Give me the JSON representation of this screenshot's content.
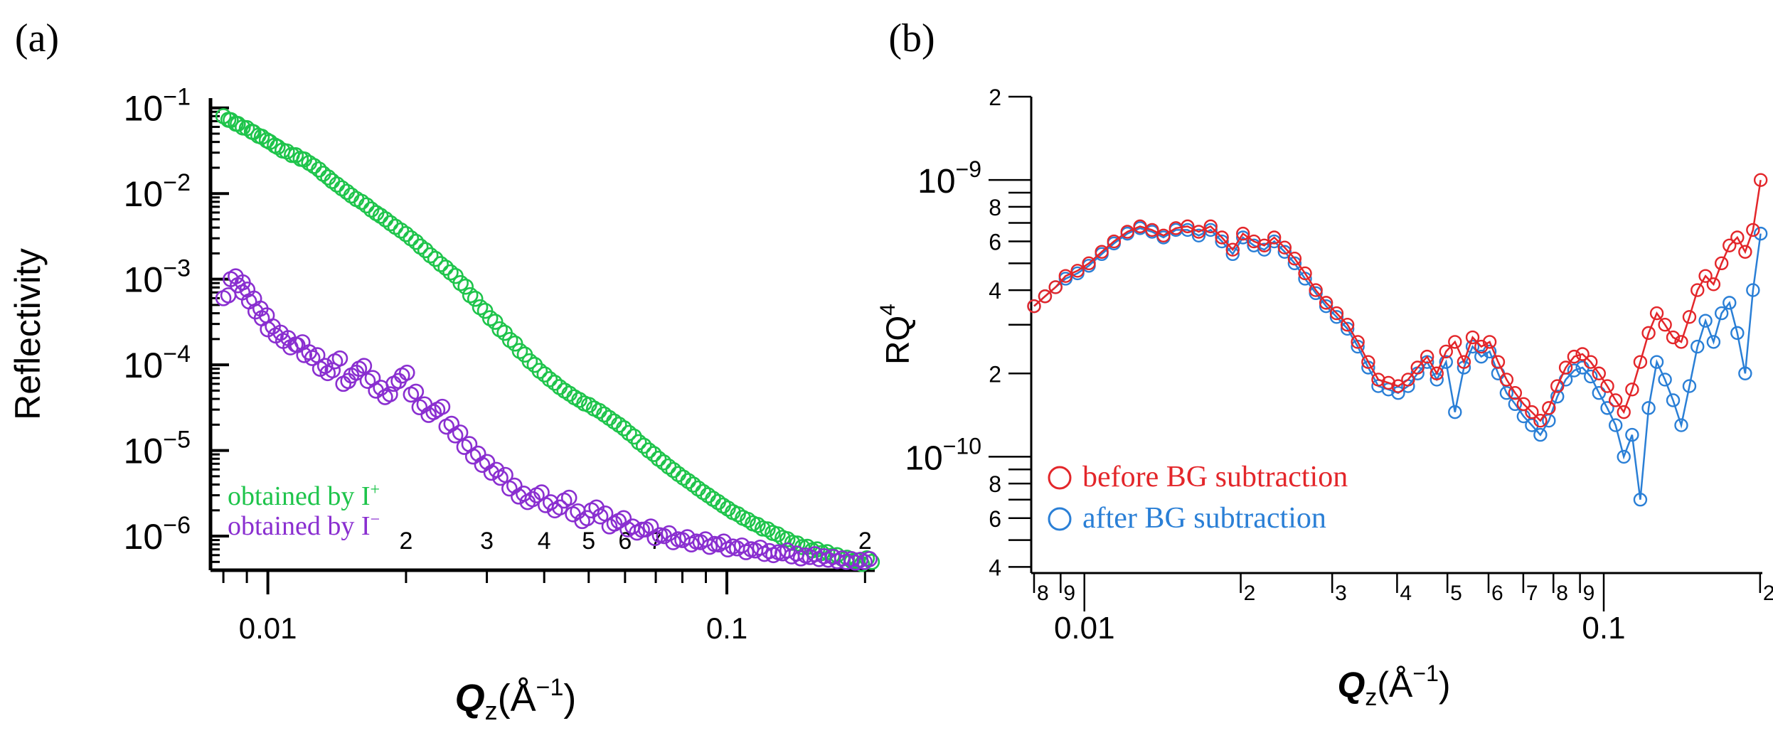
{
  "colors": {
    "axis": "#000000",
    "green": "#1ec44b",
    "purple": "#8a2fd0",
    "red": "#e3262a",
    "blue": "#2a7fd6"
  },
  "chart_data": [
    {
      "type": "scatter",
      "panel_label": "(a)",
      "xscale": "log",
      "yscale": "log",
      "xlim": [
        0.0075,
        0.21
      ],
      "ylim": [
        4e-07,
        0.13
      ],
      "xlabel_main": "Q",
      "xlabel_sub": "z",
      "xlabel_unit": "(Å",
      "xlabel_exp": "−1",
      "xlabel_close": ")",
      "ylabel": "Reflectivity",
      "x_major_ticks": [
        {
          "value": 0.01,
          "label": "0.01"
        },
        {
          "value": 0.1,
          "label": "0.1"
        }
      ],
      "x_minor_ticks": [
        {
          "value": 0.02,
          "label": "2"
        },
        {
          "value": 0.03,
          "label": "3"
        },
        {
          "value": 0.04,
          "label": "4"
        },
        {
          "value": 0.05,
          "label": "5"
        },
        {
          "value": 0.06,
          "label": "6"
        },
        {
          "value": 0.07,
          "label": "7"
        },
        {
          "value": 0.2,
          "label": "2"
        }
      ],
      "x_minor_unlabeled": [
        0.008,
        0.009,
        0.08,
        0.09
      ],
      "y_ticks": [
        {
          "value": 0.1,
          "base": "10",
          "exp": "−1"
        },
        {
          "value": 0.01,
          "base": "10",
          "exp": "−2"
        },
        {
          "value": 0.001,
          "base": "10",
          "exp": "−3"
        },
        {
          "value": 0.0001,
          "base": "10",
          "exp": "−4"
        },
        {
          "value": 1e-05,
          "base": "10",
          "exp": "−5"
        },
        {
          "value": 1e-06,
          "base": "10",
          "exp": "−6"
        }
      ],
      "legend": [
        {
          "text": "obtained by I",
          "sup": "+",
          "color": "green"
        },
        {
          "text": "obtained by I",
          "sup": "−",
          "color": "purple"
        }
      ],
      "series": [
        {
          "name": "obtained by I+",
          "color": "green",
          "x": [
            0.008,
            0.0083,
            0.0086,
            0.009,
            0.0093,
            0.0097,
            0.0101,
            0.0105,
            0.011,
            0.0115,
            0.012,
            0.0126,
            0.0132,
            0.0138,
            0.0145,
            0.0152,
            0.016,
            0.0168,
            0.0176,
            0.0185,
            0.0195,
            0.0205,
            0.0215,
            0.0226,
            0.0238,
            0.025,
            0.0263,
            0.0276,
            0.029,
            0.0305,
            0.032,
            0.0337,
            0.0354,
            0.0372,
            0.0391,
            0.0411,
            0.0432,
            0.0454,
            0.0477,
            0.0501,
            0.0527,
            0.0554,
            0.0582,
            0.0612,
            0.0643,
            0.0676,
            0.071,
            0.0746,
            0.0784,
            0.0824,
            0.0866,
            0.091,
            0.0957,
            0.1005,
            0.1057,
            0.1111,
            0.1167,
            0.1227,
            0.129,
            0.1355,
            0.1424,
            0.1497,
            0.1573,
            0.1654,
            0.1738,
            0.1827,
            0.192,
            0.2018
          ],
          "y": [
            0.08,
            0.072,
            0.065,
            0.058,
            0.052,
            0.046,
            0.04,
            0.035,
            0.031,
            0.028,
            0.025,
            0.021,
            0.017,
            0.014,
            0.0115,
            0.0095,
            0.008,
            0.0065,
            0.0055,
            0.0045,
            0.0037,
            0.003,
            0.0024,
            0.0019,
            0.0015,
            0.0012,
            0.0009,
            0.00065,
            0.00047,
            0.00035,
            0.00026,
            0.000195,
            0.000145,
            0.00011,
            8.5e-05,
            6.8e-05,
            5.5e-05,
            4.6e-05,
            3.9e-05,
            3.4e-05,
            2.9e-05,
            2.4e-05,
            2e-05,
            1.6e-05,
            1.25e-05,
            1e-05,
            8e-06,
            6.5e-06,
            5.3e-06,
            4.4e-06,
            3.6e-06,
            3e-06,
            2.5e-06,
            2.1e-06,
            1.8e-06,
            1.55e-06,
            1.35e-06,
            1.2e-06,
            1.05e-06,
            9.2e-07,
            8.2e-07,
            7.5e-07,
            7e-07,
            6.5e-07,
            6e-07,
            5.6e-07,
            5.2e-07,
            5.5e-07
          ]
        },
        {
          "name": "obtained by I−",
          "color": "purple",
          "x": [
            0.008,
            0.0083,
            0.0086,
            0.0088,
            0.0091,
            0.0094,
            0.0097,
            0.01,
            0.0104,
            0.0108,
            0.0112,
            0.0116,
            0.012,
            0.0125,
            0.013,
            0.0135,
            0.014,
            0.0146,
            0.0152,
            0.0158,
            0.0165,
            0.0172,
            0.018,
            0.0188,
            0.0196,
            0.0205,
            0.0214,
            0.0224,
            0.0234,
            0.0245,
            0.0256,
            0.0268,
            0.028,
            0.0293,
            0.0307,
            0.0321,
            0.0336,
            0.0352,
            0.0368,
            0.0385,
            0.0403,
            0.0422,
            0.0442,
            0.0462,
            0.0484,
            0.0507,
            0.053,
            0.0555,
            0.0581,
            0.0608,
            0.0637,
            0.0666,
            0.0697,
            0.073,
            0.0764,
            0.08,
            0.0837,
            0.0876,
            0.0917,
            0.096,
            0.1005,
            0.1052,
            0.1101,
            0.1153,
            0.1207,
            0.1263,
            0.1322,
            0.1384,
            0.1449,
            0.1517,
            0.1588,
            0.1662,
            0.174,
            0.1821,
            0.1906,
            0.1995
          ],
          "y": [
            0.0006,
            0.001,
            0.00085,
            0.0007,
            0.00055,
            0.00042,
            0.00035,
            0.00026,
            0.00022,
            0.00019,
            0.00016,
            0.00017,
            0.00013,
            0.00012,
            9e-05,
            8e-05,
            0.00011,
            6e-05,
            7.5e-05,
            9e-05,
            6.5e-05,
            5e-05,
            4.2e-05,
            6e-05,
            7.5e-05,
            4.5e-05,
            3.2e-05,
            2.6e-05,
            3e-05,
            1.9e-05,
            1.5e-05,
            1.1e-05,
            8.5e-06,
            6.8e-06,
            5.5e-06,
            4.8e-06,
            3.6e-06,
            2.9e-06,
            2.5e-06,
            3e-06,
            2.3e-06,
            2e-06,
            2.6e-06,
            1.8e-06,
            1.5e-06,
            2e-06,
            1.7e-06,
            1.3e-06,
            1.5e-06,
            1.2e-06,
            1.1e-06,
            1.2e-06,
            9.5e-07,
            1e-06,
            8.5e-07,
            9e-07,
            8e-07,
            8.5e-07,
            7.5e-07,
            8e-07,
            7e-07,
            7.2e-07,
            6.5e-07,
            6.8e-07,
            6.2e-07,
            6e-07,
            6.3e-07,
            5.8e-07,
            5.5e-07,
            5.7e-07,
            5.4e-07,
            5.3e-07,
            5.1e-07,
            5e-07,
            4.9e-07,
            5e-07
          ]
        }
      ]
    },
    {
      "type": "line",
      "panel_label": "(b)",
      "xscale": "log",
      "yscale": "log",
      "xlim": [
        0.0079,
        0.202
      ],
      "ylim": [
        3.8e-11,
        2e-09
      ],
      "xlabel_main": "Q",
      "xlabel_sub": "z",
      "xlabel_unit": "(Å",
      "xlabel_exp": "−1",
      "xlabel_close": ")",
      "ylabel_main": "RQ",
      "ylabel_exp": "4",
      "x_major_ticks": [
        {
          "value": 0.01,
          "label": "0.01"
        },
        {
          "value": 0.1,
          "label": "0.1"
        }
      ],
      "x_minor_ticks": [
        {
          "value": 0.008,
          "label": "8"
        },
        {
          "value": 0.009,
          "label": "9"
        },
        {
          "value": 0.02,
          "label": "2"
        },
        {
          "value": 0.03,
          "label": "3"
        },
        {
          "value": 0.04,
          "label": "4"
        },
        {
          "value": 0.05,
          "label": "5"
        },
        {
          "value": 0.06,
          "label": "6"
        },
        {
          "value": 0.07,
          "label": "7"
        },
        {
          "value": 0.08,
          "label": "8"
        },
        {
          "value": 0.09,
          "label": "9"
        },
        {
          "value": 0.2,
          "label": "2"
        }
      ],
      "y_major_ticks": [
        {
          "value": 1e-09,
          "base": "10",
          "exp": "−9"
        },
        {
          "value": 1e-10,
          "base": "10",
          "exp": "−10"
        }
      ],
      "y_minor_ticks": [
        {
          "value": 2e-09,
          "label": "2"
        },
        {
          "value": 8e-10,
          "label": "8"
        },
        {
          "value": 6e-10,
          "label": "6"
        },
        {
          "value": 4e-10,
          "label": "4"
        },
        {
          "value": 2e-10,
          "label": "2"
        },
        {
          "value": 8e-11,
          "label": "8"
        },
        {
          "value": 6e-11,
          "label": "6"
        },
        {
          "value": 4e-11,
          "label": "4"
        }
      ],
      "y_minor_unlabeled": [
        9e-10,
        7e-10,
        5e-10,
        3e-10,
        9e-11,
        7e-11,
        5e-11
      ],
      "legend": [
        {
          "text": "before BG subtraction",
          "color": "red"
        },
        {
          "text": "after BG subtraction",
          "color": "blue"
        }
      ],
      "series": [
        {
          "name": "before BG subtraction",
          "color": "red",
          "x": [
            0.008,
            0.0084,
            0.0088,
            0.0092,
            0.0097,
            0.0102,
            0.0108,
            0.0114,
            0.0121,
            0.0128,
            0.0135,
            0.0142,
            0.015,
            0.0158,
            0.0166,
            0.0175,
            0.0184,
            0.0193,
            0.0202,
            0.0212,
            0.0222,
            0.0232,
            0.0243,
            0.0254,
            0.0266,
            0.0279,
            0.0292,
            0.0306,
            0.0321,
            0.0336,
            0.0352,
            0.0368,
            0.0385,
            0.0402,
            0.042,
            0.0438,
            0.0457,
            0.0477,
            0.0497,
            0.0517,
            0.0538,
            0.0559,
            0.0581,
            0.0603,
            0.0626,
            0.065,
            0.0675,
            0.0701,
            0.0727,
            0.0755,
            0.0784,
            0.0814,
            0.0845,
            0.0877,
            0.091,
            0.0944,
            0.0979,
            0.1016,
            0.1054,
            0.1093,
            0.1134,
            0.1176,
            0.122,
            0.1265,
            0.1312,
            0.136,
            0.141,
            0.1462,
            0.1515,
            0.157,
            0.1627,
            0.1686,
            0.1746,
            0.1808,
            0.1872,
            0.1938,
            0.2005
          ],
          "y": [
            3.5e-10,
            3.8e-10,
            4.1e-10,
            4.5e-10,
            4.7e-10,
            5e-10,
            5.5e-10,
            6e-10,
            6.5e-10,
            6.8e-10,
            6.6e-10,
            6.3e-10,
            6.7e-10,
            6.8e-10,
            6.5e-10,
            6.8e-10,
            6.2e-10,
            5.6e-10,
            6.4e-10,
            6e-10,
            5.8e-10,
            6.2e-10,
            5.7e-10,
            5.2e-10,
            4.6e-10,
            4e-10,
            3.6e-10,
            3.3e-10,
            3e-10,
            2.6e-10,
            2.2e-10,
            1.9e-10,
            1.85e-10,
            1.8e-10,
            1.9e-10,
            2.1e-10,
            2.3e-10,
            2e-10,
            2.4e-10,
            2.6e-10,
            2.2e-10,
            2.7e-10,
            2.5e-10,
            2.6e-10,
            2.2e-10,
            1.9e-10,
            1.7e-10,
            1.55e-10,
            1.45e-10,
            1.35e-10,
            1.5e-10,
            1.8e-10,
            2.1e-10,
            2.3e-10,
            2.35e-10,
            2.2e-10,
            2e-10,
            1.8e-10,
            1.6e-10,
            1.45e-10,
            1.75e-10,
            2.2e-10,
            2.8e-10,
            3.3e-10,
            3e-10,
            2.7e-10,
            2.6e-10,
            3.2e-10,
            4e-10,
            4.5e-10,
            4.2e-10,
            5e-10,
            5.8e-10,
            6.2e-10,
            5.5e-10,
            6.6e-10,
            1e-09
          ]
        },
        {
          "name": "after BG subtraction",
          "color": "blue",
          "x": [
            0.008,
            0.0084,
            0.0088,
            0.0092,
            0.0097,
            0.0102,
            0.0108,
            0.0114,
            0.0121,
            0.0128,
            0.0135,
            0.0142,
            0.015,
            0.0158,
            0.0166,
            0.0175,
            0.0184,
            0.0193,
            0.0202,
            0.0212,
            0.0222,
            0.0232,
            0.0243,
            0.0254,
            0.0266,
            0.0279,
            0.0292,
            0.0306,
            0.0321,
            0.0336,
            0.0352,
            0.0368,
            0.0385,
            0.0402,
            0.042,
            0.0438,
            0.0457,
            0.0477,
            0.0497,
            0.0517,
            0.0538,
            0.0559,
            0.0581,
            0.0603,
            0.0626,
            0.065,
            0.0675,
            0.0701,
            0.0727,
            0.0755,
            0.0784,
            0.0814,
            0.0845,
            0.0877,
            0.091,
            0.0944,
            0.0979,
            0.1016,
            0.1054,
            0.1093,
            0.1134,
            0.1176,
            0.122,
            0.1265,
            0.1312,
            0.136,
            0.141,
            0.1462,
            0.1515,
            0.157,
            0.1627,
            0.1686,
            0.1746,
            0.1808,
            0.1872,
            0.1938,
            0.2005
          ],
          "y": [
            3.5e-10,
            3.8e-10,
            4.1e-10,
            4.4e-10,
            4.6e-10,
            4.9e-10,
            5.4e-10,
            5.9e-10,
            6.4e-10,
            6.7e-10,
            6.5e-10,
            6.2e-10,
            6.6e-10,
            6.6e-10,
            6.3e-10,
            6.6e-10,
            6e-10,
            5.4e-10,
            6.2e-10,
            5.8e-10,
            5.6e-10,
            6e-10,
            5.5e-10,
            5e-10,
            4.4e-10,
            3.9e-10,
            3.5e-10,
            3.2e-10,
            2.9e-10,
            2.5e-10,
            2.1e-10,
            1.8e-10,
            1.75e-10,
            1.7e-10,
            1.8e-10,
            2e-10,
            2.2e-10,
            1.9e-10,
            2.2e-10,
            1.45e-10,
            2.1e-10,
            2.5e-10,
            2.3e-10,
            2.4e-10,
            2e-10,
            1.7e-10,
            1.55e-10,
            1.4e-10,
            1.3e-10,
            1.2e-10,
            1.35e-10,
            1.65e-10,
            1.9e-10,
            2.05e-10,
            2.1e-10,
            1.95e-10,
            1.7e-10,
            1.5e-10,
            1.3e-10,
            1e-10,
            1.2e-10,
            7e-11,
            1.5e-10,
            2.2e-10,
            1.9e-10,
            1.6e-10,
            1.3e-10,
            1.8e-10,
            2.5e-10,
            3.1e-10,
            2.6e-10,
            3.3e-10,
            3.6e-10,
            2.8e-10,
            2e-10,
            4e-10,
            6.4e-10
          ]
        }
      ]
    }
  ]
}
